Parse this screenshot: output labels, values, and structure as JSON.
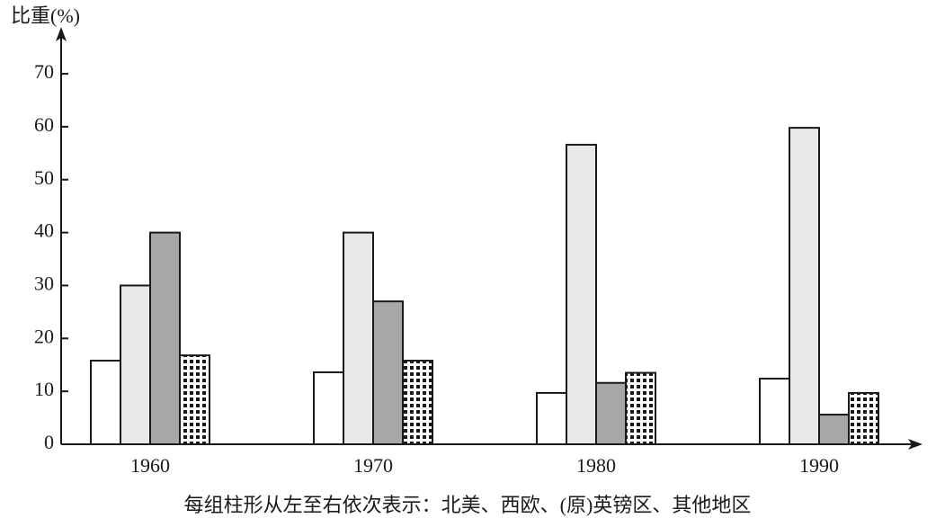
{
  "chart_data": {
    "type": "bar",
    "y_label": "比重(%)",
    "caption": "每组柱形从左至右依次表示：北美、西欧、(原)英镑区、其他地区",
    "categories": [
      "1960",
      "1970",
      "1980",
      "1990"
    ],
    "series": [
      {
        "color": "#ffffff",
        "values": [
          15.8,
          13.6,
          9.7,
          12.4
        ]
      },
      {
        "color": "#e8e8e8",
        "values": [
          30,
          40,
          56.6,
          59.8
        ]
      },
      {
        "color": "#a8a8a8",
        "values": [
          40,
          27,
          11.6,
          5.6
        ]
      },
      {
        "color": "#ffffff",
        "pattern": "dots",
        "values": [
          16.8,
          15.8,
          13.5,
          9.7
        ]
      }
    ],
    "ylim": [
      0,
      78
    ],
    "yticks": [
      0,
      10,
      20,
      30,
      40,
      50,
      60,
      70
    ],
    "grid": false
  }
}
